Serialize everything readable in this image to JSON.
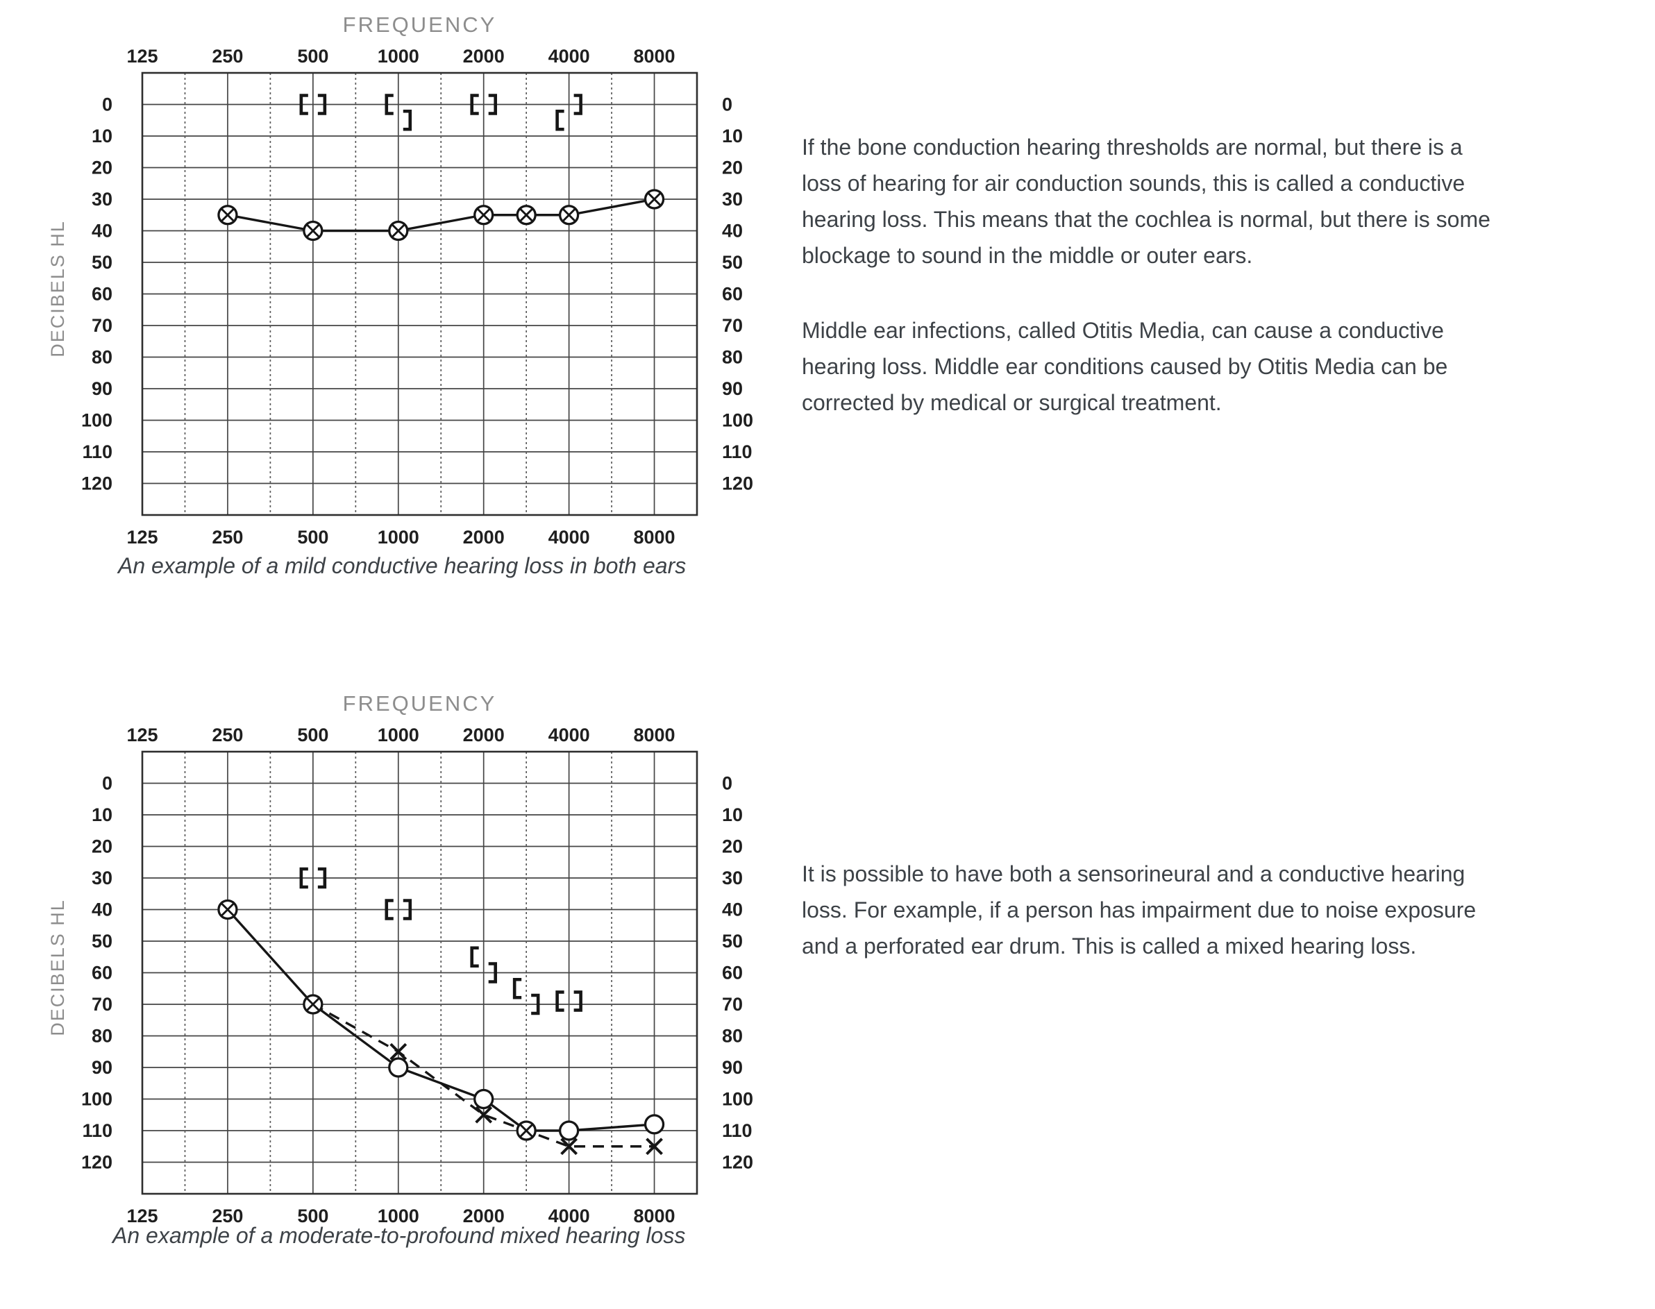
{
  "colors": {
    "ink": "#161616",
    "grid_line": "#454545",
    "grid_dashed": "#5a5a5a",
    "grid_border": "#2e2e2e",
    "tick_label": "#1f1f1f",
    "muted_label": "#8d8d8d",
    "body_text": "#3d4247",
    "background": "#ffffff"
  },
  "paragraphs": {
    "p1": "If the bone conduction hearing thresholds are normal, but there is a loss of hearing for air conduction sounds, this is called a conductive hearing loss. This means that the cochlea is normal, but there is some blockage to sound in the middle or outer ears.",
    "p2": "Middle ear infections, called Otitis Media, can cause a conductive hearing loss. Middle ear conditions caused by Otitis Media can be corrected by medical or surgical treatment.",
    "p3": "It is possible to have both a sensorineural and a conductive hearing loss. For example, if a person has impairment due to noise exposure and a perforated ear drum. This is called a mixed hearing loss."
  },
  "chart_data": [
    {
      "type": "line",
      "name": "mild-conductive-audiogram",
      "title": "FREQUENCY",
      "ylabel": "DECIBELS HL",
      "caption": "An example of a mild conductive hearing loss in both ears",
      "x_scale": "log-octave",
      "x_tick_labels": [
        "125",
        "250",
        "500",
        "1000",
        "2000",
        "4000",
        "8000"
      ],
      "y_tick_labels": [
        "0",
        "10",
        "20",
        "30",
        "40",
        "50",
        "60",
        "70",
        "80",
        "90",
        "100",
        "110",
        "120"
      ],
      "ylim": [
        -10,
        130
      ],
      "grid": true,
      "series": [
        {
          "name": "air-conduction",
          "line": "solid",
          "symbol": "circle-x",
          "points": [
            {
              "f": 250,
              "db": 35
            },
            {
              "f": 500,
              "db": 40
            },
            {
              "f": 1000,
              "db": 40
            },
            {
              "f": 2000,
              "db": 35
            },
            {
              "f": 3000,
              "db": 35
            },
            {
              "f": 4000,
              "db": 35
            },
            {
              "f": 8000,
              "db": 30
            }
          ]
        }
      ],
      "bone_conduction": [
        {
          "f": 500,
          "bracket": "[",
          "db": 0
        },
        {
          "f": 500,
          "bracket": "]",
          "db": 0
        },
        {
          "f": 1000,
          "bracket": "[",
          "db": 0
        },
        {
          "f": 1000,
          "bracket": "]",
          "db": 5
        },
        {
          "f": 2000,
          "bracket": "[",
          "db": 0
        },
        {
          "f": 2000,
          "bracket": "]",
          "db": 0
        },
        {
          "f": 4000,
          "bracket": "[",
          "db": 5
        },
        {
          "f": 4000,
          "bracket": "]",
          "db": 0
        }
      ]
    },
    {
      "type": "line",
      "name": "mixed-hearing-loss-audiogram",
      "title": "FREQUENCY",
      "ylabel": "DECIBELS HL",
      "caption": "An example of a moderate-to-profound mixed hearing loss",
      "x_scale": "log-octave",
      "x_tick_labels": [
        "125",
        "250",
        "500",
        "1000",
        "2000",
        "4000",
        "8000"
      ],
      "y_tick_labels": [
        "0",
        "10",
        "20",
        "30",
        "40",
        "50",
        "60",
        "70",
        "80",
        "90",
        "100",
        "110",
        "120"
      ],
      "ylim": [
        -10,
        130
      ],
      "grid": true,
      "series": [
        {
          "name": "air-conduction-masked",
          "line": "solid",
          "symbol": "circle",
          "points": [
            {
              "f": 250,
              "db": 40,
              "sym": "circle-x"
            },
            {
              "f": 500,
              "db": 70,
              "sym": "circle-x"
            },
            {
              "f": 1000,
              "db": 90,
              "sym": "circle"
            },
            {
              "f": 2000,
              "db": 100,
              "sym": "circle"
            },
            {
              "f": 3000,
              "db": 110,
              "sym": "circle-x"
            },
            {
              "f": 4000,
              "db": 110,
              "sym": "circle"
            },
            {
              "f": 8000,
              "db": 108,
              "sym": "circle"
            }
          ]
        },
        {
          "name": "air-conduction-unmasked",
          "line": "dashed",
          "symbol": "x",
          "points": [
            {
              "f": 500,
              "db": 70,
              "sym": "none"
            },
            {
              "f": 1000,
              "db": 85,
              "sym": "x"
            },
            {
              "f": 2000,
              "db": 105,
              "sym": "x"
            },
            {
              "f": 3000,
              "db": 110,
              "sym": "none"
            },
            {
              "f": 4000,
              "db": 115,
              "sym": "x"
            },
            {
              "f": 8000,
              "db": 115,
              "sym": "x"
            }
          ]
        }
      ],
      "bone_conduction": [
        {
          "f": 500,
          "bracket": "[",
          "db": 30
        },
        {
          "f": 500,
          "bracket": "]",
          "db": 30
        },
        {
          "f": 1000,
          "bracket": "[",
          "db": 40
        },
        {
          "f": 1000,
          "bracket": "]",
          "db": 40
        },
        {
          "f": 2000,
          "bracket": "[",
          "db": 55
        },
        {
          "f": 2000,
          "bracket": "]",
          "db": 60
        },
        {
          "f": 3000,
          "bracket": "[",
          "db": 65
        },
        {
          "f": 3000,
          "bracket": "]",
          "db": 70
        },
        {
          "f": 4000,
          "bracket": "[",
          "db": 69
        },
        {
          "f": 4000,
          "bracket": "]",
          "db": 69
        }
      ]
    }
  ]
}
